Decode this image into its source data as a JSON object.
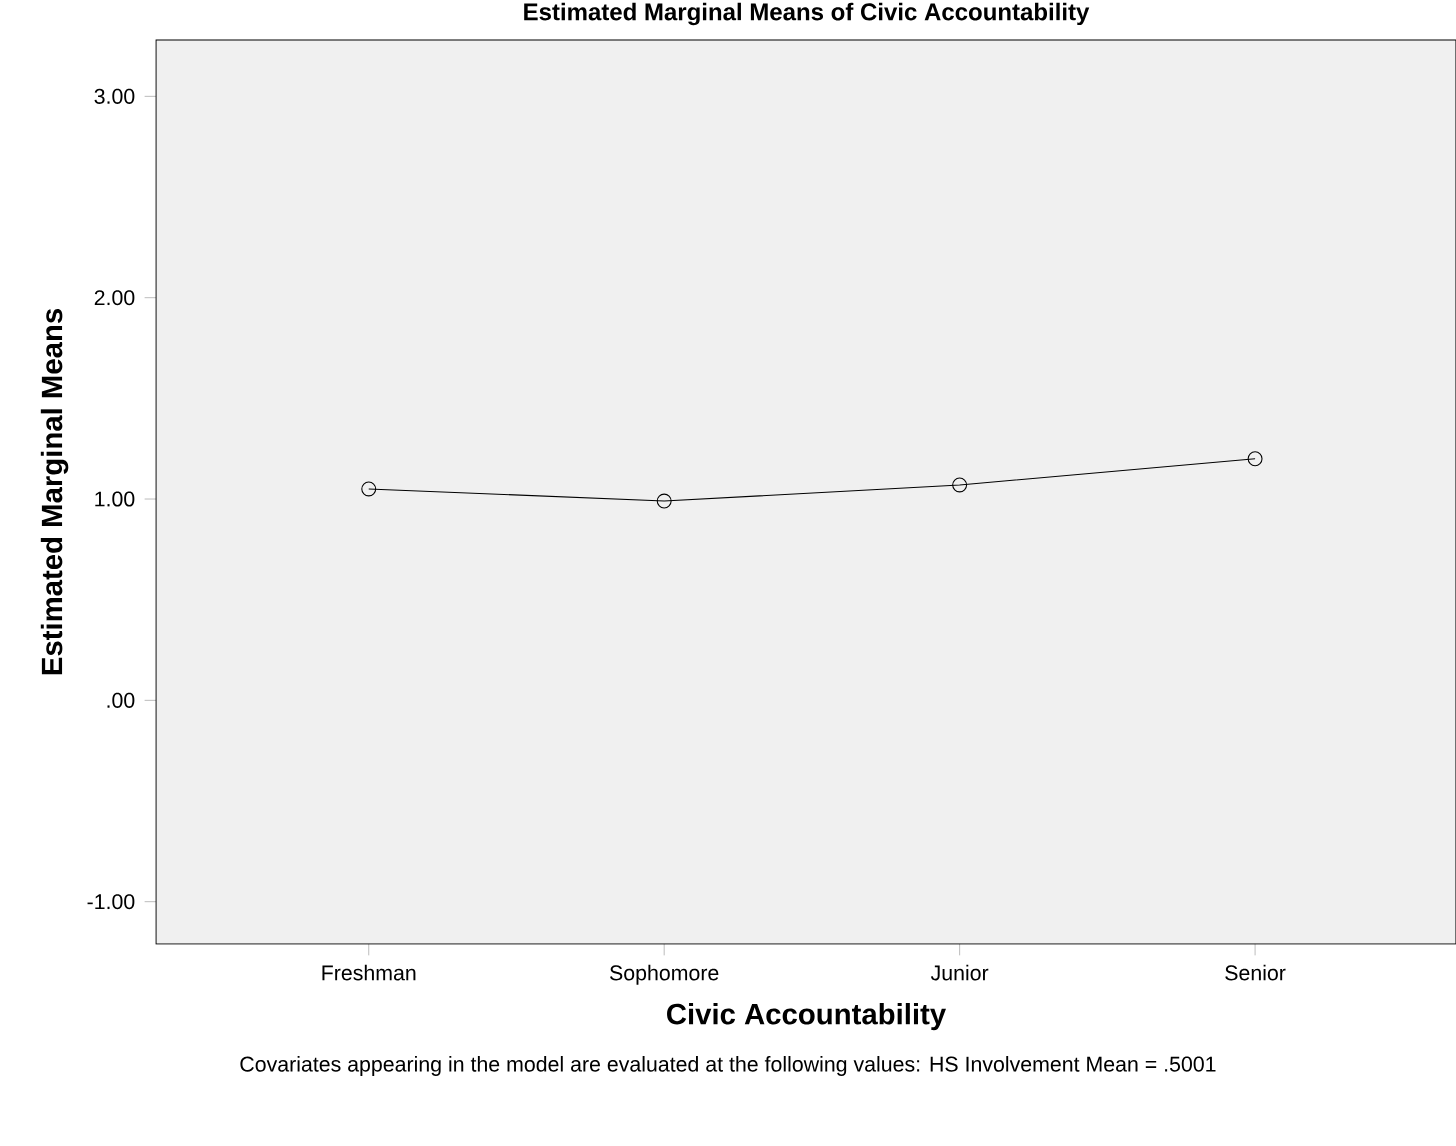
{
  "chart_data": {
    "type": "line",
    "title": "Estimated Marginal Means of Civic Accountability",
    "xlabel": "Civic Accountability",
    "ylabel": "Estimated Marginal Means",
    "categories": [
      "Freshman",
      "Sophomore",
      "Junior",
      "Senior"
    ],
    "values": [
      1.05,
      0.99,
      1.07,
      1.2
    ],
    "color": "#000000",
    "marker": "circle",
    "line_style": "solid",
    "grid": false,
    "ylim": [
      -1.21,
      3.28
    ],
    "yticks": [
      {
        "value": -1,
        "label": "-1.00"
      },
      {
        "value": 0,
        "label": ".00"
      },
      {
        "value": 1,
        "label": "1.00"
      },
      {
        "value": 2,
        "label": "2.00"
      },
      {
        "value": 3,
        "label": "3.00"
      }
    ],
    "annotations": [
      "Covariates appearing in the model are evaluated at the following values: HS Involvement Mean = .5001"
    ]
  }
}
